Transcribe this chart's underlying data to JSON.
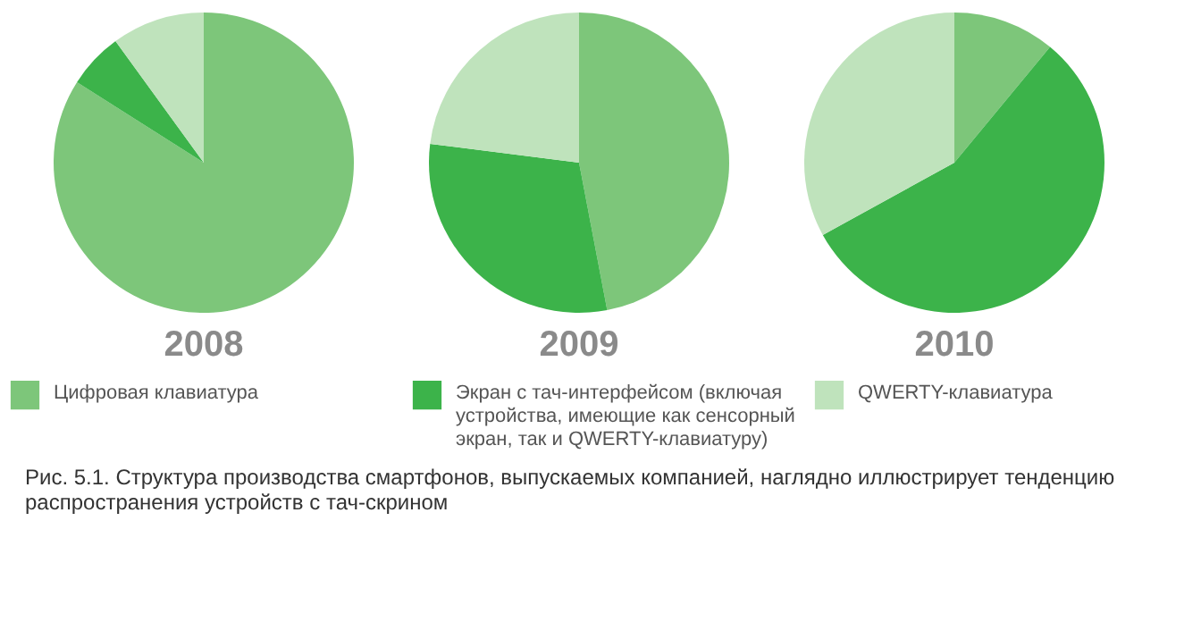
{
  "chart_data": [
    {
      "type": "pie",
      "title": "2008",
      "categories": [
        "Цифровая клавиатура",
        "Экран с тач-интерфейсом (включая устройства, имеющие как сенсорный экран, так и QWERTY-клавиатуру)",
        "QWERTY-клавиатура"
      ],
      "values": [
        84,
        6,
        10
      ],
      "colors": [
        "#7dc67a",
        "#3cb34a",
        "#bfe3bc"
      ],
      "legend": "bottom",
      "annotations": [
        "Рис. 5.1. Структура производства смартфонов, выпускаемых компанией, наглядно иллюстрирует тенденцию распространения устройств с тач-скрином"
      ]
    },
    {
      "type": "pie",
      "title": "2009",
      "values": [
        47,
        30,
        23
      ],
      "colors": [
        "#7dc67a",
        "#3cb34a",
        "#bfe3bc"
      ]
    },
    {
      "type": "pie",
      "title": "2010",
      "values": [
        11,
        56,
        33
      ],
      "colors": [
        "#7dc67a",
        "#3cb34a",
        "#bfe3bc"
      ]
    }
  ]
}
